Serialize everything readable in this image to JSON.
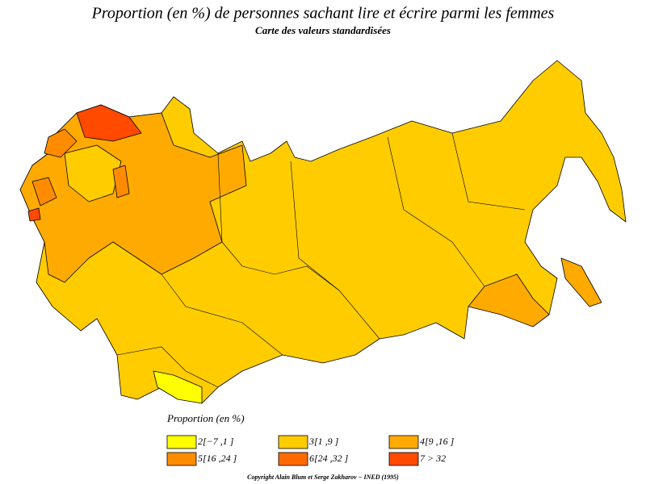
{
  "title": "Proportion (en %) de personnes sachant lire et écrire parmi les femmes",
  "subtitle": "Carte des valeurs standardisées",
  "legend": {
    "title": "Proportion (en %)",
    "items": [
      {
        "label": "2[−7 ,1 ]",
        "color": "#ffff00"
      },
      {
        "label": "3[1 ,9 ]",
        "color": "#ffcc00"
      },
      {
        "label": "4[9 ,16 ]",
        "color": "#ffaa00"
      },
      {
        "label": "5[16 ,24 ]",
        "color": "#ff8c00"
      },
      {
        "label": "6[24 ,32 ]",
        "color": "#ff6a00"
      },
      {
        "label": "7 > 32",
        "color": "#ff4a00"
      }
    ]
  },
  "copyright": "Copyright Alain Blum et Serge Zakharov − INED (1995)"
}
